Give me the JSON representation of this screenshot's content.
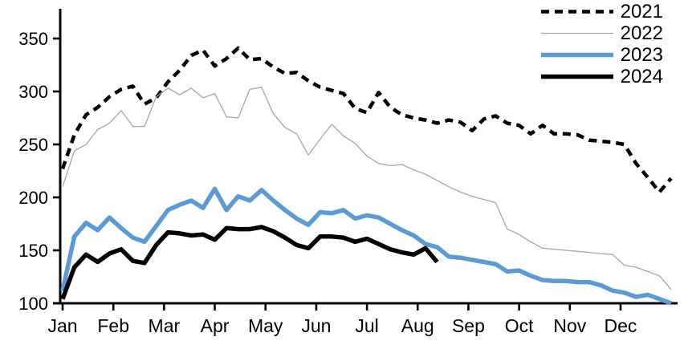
{
  "chart_data": {
    "type": "line",
    "title": "",
    "grid": false,
    "background": "#ffffff",
    "legend_position": "top-right",
    "x_unit": "weekly points, Jan through Dec (53 points per full year)",
    "x_axis": {
      "tick_labels": [
        "Jan",
        "Feb",
        "Mar",
        "Apr",
        "May",
        "Jun",
        "Jul",
        "Aug",
        "Sep",
        "Oct",
        "Nov",
        "Dec"
      ]
    },
    "y_axis": {
      "ticks": [
        100,
        150,
        200,
        250,
        300,
        350
      ],
      "range": [
        100,
        377
      ]
    },
    "axis_color": "#000000",
    "series": [
      {
        "name": "2021",
        "color": "#000000",
        "style": "dashed",
        "width": 4.5,
        "values": [
          227,
          259,
          278,
          285,
          295,
          302,
          305,
          288,
          294,
          309,
          320,
          334,
          339,
          324,
          331,
          341,
          330,
          331,
          323,
          317,
          318,
          310,
          304,
          301,
          298,
          284,
          280,
          299,
          285,
          278,
          275,
          273,
          270,
          273,
          271,
          263,
          274,
          277,
          270,
          268,
          260,
          268,
          260,
          260,
          259,
          254,
          253,
          252,
          250,
          232,
          219,
          205,
          218
        ]
      },
      {
        "name": "2022",
        "color": "#a6a6a6",
        "style": "solid",
        "width": 1.3,
        "values": [
          210,
          244,
          250,
          264,
          270,
          282,
          267,
          267,
          295,
          303,
          297,
          303,
          294,
          298,
          276,
          275,
          302,
          304,
          279,
          266,
          260,
          240,
          255,
          269,
          258,
          251,
          239,
          232,
          230,
          231,
          226,
          222,
          216,
          210,
          205,
          201,
          198,
          195,
          170,
          165,
          158,
          152,
          151,
          150,
          149,
          148,
          147,
          146,
          136,
          134,
          130,
          126,
          113
        ]
      },
      {
        "name": "2023",
        "color": "#5b9bd5",
        "style": "solid",
        "width": 5.5,
        "values": [
          112,
          163,
          176,
          169,
          181,
          171,
          162,
          158,
          173,
          188,
          193,
          197,
          190,
          208,
          188,
          201,
          197,
          207,
          197,
          188,
          180,
          174,
          186,
          185,
          188,
          180,
          183,
          181,
          175,
          169,
          164,
          156,
          153,
          144,
          143,
          141,
          139,
          137,
          130,
          131,
          126,
          122,
          121,
          121,
          120,
          120,
          117,
          112,
          110,
          106,
          108,
          104,
          100
        ]
      },
      {
        "name": "2024",
        "color": "#000000",
        "style": "solid",
        "width": 5.5,
        "values": [
          104,
          134,
          146,
          139,
          147,
          151,
          140,
          138,
          155,
          167,
          166,
          164,
          165,
          160,
          171,
          170,
          170,
          172,
          168,
          162,
          155,
          152,
          163,
          163,
          162,
          158,
          161,
          156,
          151,
          148,
          146,
          152,
          139
        ]
      }
    ]
  }
}
